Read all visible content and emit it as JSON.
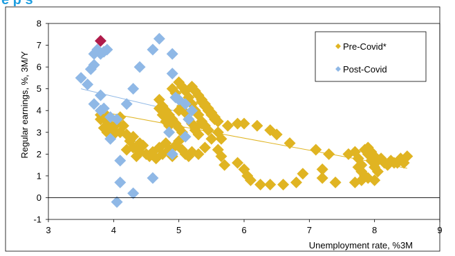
{
  "title": "e    p   s   ",
  "chart_data": {
    "type": "scatter",
    "xlabel": "Unemployment rate, %3M",
    "ylabel": "Regular earnings, %, 3M/Y",
    "xlim": [
      3,
      9
    ],
    "ylim": [
      -1,
      8
    ],
    "x_ticks": [
      "3",
      "4",
      "5",
      "6",
      "7",
      "8",
      "9"
    ],
    "y_ticks": [
      "-1",
      "0",
      "1",
      "2",
      "3",
      "4",
      "5",
      "6",
      "7",
      "8"
    ],
    "grid": false,
    "legend_position": "top-right",
    "colors": {
      "pre_covid": "#e0b422",
      "post_covid": "#8fb8e6",
      "highlight": "#b01c4b",
      "pre_trend": "#e0b422",
      "post_trend": "#8fb8e6"
    },
    "series": [
      {
        "name": "Pre-Covid*",
        "marker": "diamond",
        "points": [
          [
            3.8,
            3.6
          ],
          [
            3.85,
            3.2
          ],
          [
            3.9,
            3.0
          ],
          [
            3.8,
            3.8
          ],
          [
            3.9,
            3.5
          ],
          [
            3.95,
            3.3
          ],
          [
            4.0,
            3.1
          ],
          [
            4.05,
            3.4
          ],
          [
            4.1,
            3.7
          ],
          [
            4.15,
            3.3
          ],
          [
            3.85,
            3.9
          ],
          [
            4.0,
            2.9
          ],
          [
            4.1,
            3.0
          ],
          [
            4.2,
            2.2
          ],
          [
            4.25,
            2.6
          ],
          [
            4.3,
            2.3
          ],
          [
            4.35,
            1.9
          ],
          [
            4.4,
            2.1
          ],
          [
            4.45,
            2.4
          ],
          [
            4.5,
            2.0
          ],
          [
            4.2,
            2.9
          ],
          [
            4.3,
            2.8
          ],
          [
            4.4,
            2.5
          ],
          [
            4.55,
            1.9
          ],
          [
            4.6,
            2.1
          ],
          [
            4.65,
            1.8
          ],
          [
            4.7,
            2.3
          ],
          [
            4.75,
            2.0
          ],
          [
            4.8,
            2.5
          ],
          [
            4.85,
            2.2
          ],
          [
            4.9,
            1.9
          ],
          [
            4.95,
            2.4
          ],
          [
            5.0,
            2.6
          ],
          [
            5.05,
            2.2
          ],
          [
            5.1,
            2.0
          ],
          [
            5.15,
            1.9
          ],
          [
            5.2,
            2.1
          ],
          [
            5.3,
            2.0
          ],
          [
            5.4,
            2.3
          ],
          [
            5.5,
            2.7
          ],
          [
            5.6,
            3.0
          ],
          [
            5.65,
            2.7
          ],
          [
            4.7,
            4.5
          ],
          [
            4.75,
            4.2
          ],
          [
            4.8,
            4.0
          ],
          [
            4.85,
            3.8
          ],
          [
            4.9,
            3.6
          ],
          [
            4.95,
            3.4
          ],
          [
            5.0,
            3.2
          ],
          [
            5.05,
            3.0
          ],
          [
            4.7,
            4.1
          ],
          [
            4.75,
            3.8
          ],
          [
            4.8,
            3.5
          ],
          [
            4.85,
            3.3
          ],
          [
            4.9,
            5.0
          ],
          [
            4.95,
            4.8
          ],
          [
            5.0,
            5.3
          ],
          [
            5.05,
            5.1
          ],
          [
            5.1,
            4.9
          ],
          [
            5.15,
            4.6
          ],
          [
            5.2,
            4.3
          ],
          [
            5.25,
            4.0
          ],
          [
            5.3,
            3.8
          ],
          [
            5.35,
            3.5
          ],
          [
            5.4,
            3.3
          ],
          [
            5.45,
            3.1
          ],
          [
            5.0,
            4.0
          ],
          [
            5.05,
            4.2
          ],
          [
            5.1,
            3.9
          ],
          [
            5.15,
            3.6
          ],
          [
            5.2,
            3.4
          ],
          [
            5.25,
            3.1
          ],
          [
            5.3,
            2.9
          ],
          [
            5.35,
            4.5
          ],
          [
            5.4,
            4.3
          ],
          [
            5.45,
            4.1
          ],
          [
            5.5,
            3.9
          ],
          [
            5.55,
            3.7
          ],
          [
            5.2,
            5.1
          ],
          [
            5.25,
            4.9
          ],
          [
            5.3,
            4.7
          ],
          [
            5.35,
            4.4
          ],
          [
            5.4,
            4.2
          ],
          [
            5.45,
            4.0
          ],
          [
            5.5,
            3.8
          ],
          [
            5.55,
            3.6
          ],
          [
            5.6,
            3.5
          ],
          [
            5.35,
            3.4
          ],
          [
            5.25,
            3.2
          ],
          [
            5.6,
            2.2
          ],
          [
            5.65,
            1.9
          ],
          [
            5.7,
            1.5
          ],
          [
            5.75,
            3.3
          ],
          [
            5.9,
            1.6
          ],
          [
            6.0,
            1.3
          ],
          [
            6.05,
            1.0
          ],
          [
            6.1,
            0.8
          ],
          [
            5.9,
            3.4
          ],
          [
            6.0,
            3.4
          ],
          [
            6.2,
            3.3
          ],
          [
            6.25,
            0.6
          ],
          [
            6.4,
            0.6
          ],
          [
            6.4,
            3.1
          ],
          [
            6.5,
            2.9
          ],
          [
            6.6,
            0.6
          ],
          [
            6.7,
            2.5
          ],
          [
            6.8,
            0.7
          ],
          [
            6.9,
            1.1
          ],
          [
            7.1,
            2.2
          ],
          [
            7.2,
            1.3
          ],
          [
            7.2,
            0.9
          ],
          [
            7.3,
            2.0
          ],
          [
            7.4,
            0.7
          ],
          [
            7.6,
            2.0
          ],
          [
            7.7,
            0.7
          ],
          [
            7.8,
            0.8
          ],
          [
            7.7,
            2.1
          ],
          [
            7.75,
            1.8
          ],
          [
            7.8,
            1.5
          ],
          [
            7.85,
            2.2
          ],
          [
            7.9,
            2.0
          ],
          [
            7.95,
            1.7
          ],
          [
            8.0,
            1.4
          ],
          [
            8.05,
            1.2
          ],
          [
            7.8,
            1.2
          ],
          [
            7.85,
            1.0
          ],
          [
            7.9,
            0.9
          ],
          [
            7.75,
            1.4
          ],
          [
            7.9,
            2.3
          ],
          [
            7.95,
            2.1
          ],
          [
            8.0,
            1.9
          ],
          [
            8.05,
            1.7
          ],
          [
            8.1,
            1.8
          ],
          [
            8.15,
            1.6
          ],
          [
            8.2,
            1.5
          ],
          [
            8.0,
            0.8
          ],
          [
            8.25,
            1.7
          ],
          [
            8.3,
            1.6
          ],
          [
            8.35,
            1.6
          ],
          [
            8.4,
            1.8
          ],
          [
            8.45,
            1.6
          ],
          [
            8.5,
            1.9
          ]
        ]
      },
      {
        "name": "Post-Covid",
        "marker": "diamond",
        "points": [
          [
            3.5,
            5.5
          ],
          [
            3.6,
            5.2
          ],
          [
            3.65,
            5.9
          ],
          [
            3.7,
            6.1
          ],
          [
            3.7,
            6.6
          ],
          [
            3.75,
            6.8
          ],
          [
            3.8,
            6.6
          ],
          [
            3.85,
            6.7
          ],
          [
            3.9,
            6.8
          ],
          [
            3.7,
            4.3
          ],
          [
            3.8,
            4.0
          ],
          [
            3.85,
            4.1
          ],
          [
            3.8,
            4.7
          ],
          [
            3.95,
            2.7
          ],
          [
            3.95,
            3.7
          ],
          [
            4.05,
            3.6
          ],
          [
            4.05,
            -0.2
          ],
          [
            4.1,
            0.7
          ],
          [
            4.1,
            1.7
          ],
          [
            4.2,
            4.3
          ],
          [
            4.3,
            5.0
          ],
          [
            4.3,
            0.2
          ],
          [
            4.4,
            6.0
          ],
          [
            4.6,
            6.8
          ],
          [
            4.6,
            0.9
          ],
          [
            4.7,
            7.3
          ],
          [
            4.85,
            3.0
          ],
          [
            4.9,
            6.6
          ],
          [
            4.9,
            5.7
          ],
          [
            4.9,
            2.0
          ],
          [
            4.95,
            4.6
          ],
          [
            5.0,
            4.5
          ],
          [
            5.1,
            4.3
          ],
          [
            5.15,
            3.6
          ],
          [
            5.1,
            2.8
          ],
          [
            5.2,
            4.0
          ]
        ]
      },
      {
        "name": "",
        "marker": "diamond",
        "points": [
          [
            3.8,
            7.2
          ]
        ]
      }
    ],
    "trendlines": [
      {
        "series": "Pre-Covid*",
        "from": [
          3.8,
          3.95
        ],
        "to": [
          8.5,
          1.35
        ]
      },
      {
        "series": "Post-Covid",
        "from": [
          3.5,
          5.0
        ],
        "to": [
          5.2,
          3.8
        ]
      }
    ]
  }
}
